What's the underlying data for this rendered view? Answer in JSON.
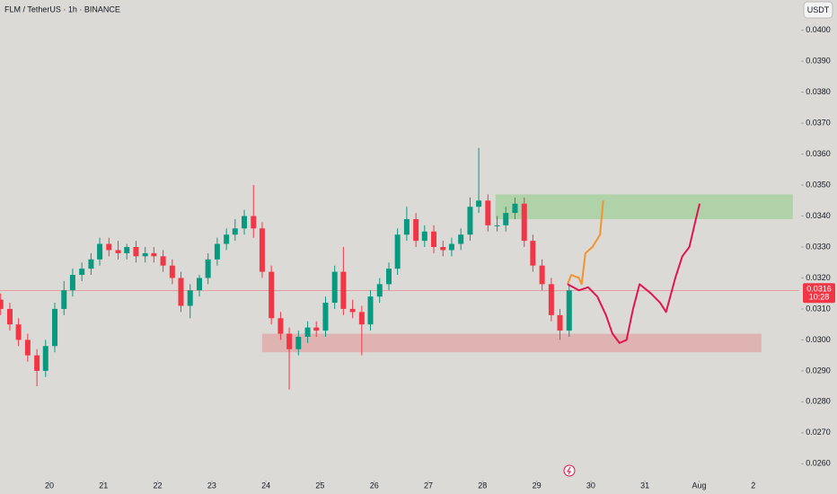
{
  "chart_data": {
    "type": "candlestick",
    "title": "FLM / TetherUS · 1h · BINANCE",
    "currency_button": "USDT",
    "up_color": "#089981",
    "down_color": "#f23645",
    "x": [
      19.1,
      19.27,
      19.43,
      19.6,
      19.77,
      19.93,
      20.1,
      20.27,
      20.43,
      20.6,
      20.77,
      20.93,
      21.1,
      21.27,
      21.43,
      21.6,
      21.77,
      21.93,
      22.1,
      22.27,
      22.43,
      22.6,
      22.77,
      22.93,
      23.1,
      23.27,
      23.43,
      23.6,
      23.77,
      23.93,
      24.1,
      24.27,
      24.43,
      24.6,
      24.77,
      24.93,
      25.1,
      25.27,
      25.43,
      25.6,
      25.77,
      25.93,
      26.1,
      26.27,
      26.43,
      26.6,
      26.77,
      26.93,
      27.1,
      27.27,
      27.43,
      27.6,
      27.77,
      27.93,
      28.1,
      28.27,
      28.43,
      28.6,
      28.77,
      28.93,
      29.1,
      29.27,
      29.43,
      29.6
    ],
    "open": [
      0.0313,
      0.031,
      0.0305,
      0.03,
      0.0295,
      0.029,
      0.0298,
      0.031,
      0.0316,
      0.0321,
      0.0323,
      0.0326,
      0.0331,
      0.0329,
      0.0328,
      0.033,
      0.0327,
      0.0328,
      0.0327,
      0.0324,
      0.032,
      0.0311,
      0.0316,
      0.032,
      0.0326,
      0.0331,
      0.0334,
      0.0336,
      0.034,
      0.0336,
      0.0322,
      0.0307,
      0.0302,
      0.0297,
      0.0301,
      0.0304,
      0.0303,
      0.0312,
      0.0322,
      0.031,
      0.0309,
      0.0305,
      0.0314,
      0.0318,
      0.0323,
      0.0334,
      0.0339,
      0.0332,
      0.0335,
      0.033,
      0.0329,
      0.0331,
      0.0334,
      0.0343,
      0.0345,
      0.0337,
      0.0337,
      0.0341,
      0.0344,
      0.0332,
      0.0324,
      0.0318,
      0.0308,
      0.0303
    ],
    "high": [
      0.0315,
      0.0312,
      0.0307,
      0.0302,
      0.0297,
      0.03,
      0.0312,
      0.0319,
      0.0323,
      0.0325,
      0.0328,
      0.0333,
      0.0333,
      0.0332,
      0.0331,
      0.0332,
      0.033,
      0.033,
      0.0329,
      0.0326,
      0.0322,
      0.0318,
      0.0321,
      0.0328,
      0.0333,
      0.0336,
      0.0339,
      0.0342,
      0.035,
      0.0338,
      0.0324,
      0.0309,
      0.0304,
      0.0303,
      0.0306,
      0.0306,
      0.0314,
      0.0324,
      0.033,
      0.0313,
      0.0311,
      0.0316,
      0.032,
      0.0325,
      0.0336,
      0.0343,
      0.0341,
      0.0337,
      0.0337,
      0.0332,
      0.0333,
      0.0336,
      0.0346,
      0.0362,
      0.0347,
      0.034,
      0.0343,
      0.0346,
      0.0346,
      0.0334,
      0.0326,
      0.032,
      0.031,
      0.0318
    ],
    "low": [
      0.0308,
      0.0303,
      0.0298,
      0.0293,
      0.0285,
      0.0288,
      0.0296,
      0.0308,
      0.0314,
      0.0319,
      0.0321,
      0.0324,
      0.0327,
      0.0326,
      0.0326,
      0.0325,
      0.0325,
      0.0325,
      0.0322,
      0.0318,
      0.0309,
      0.0307,
      0.0314,
      0.0318,
      0.0324,
      0.0329,
      0.0332,
      0.0334,
      0.0333,
      0.032,
      0.0305,
      0.03,
      0.0284,
      0.0295,
      0.0299,
      0.0301,
      0.0301,
      0.031,
      0.0308,
      0.0307,
      0.0295,
      0.0303,
      0.0312,
      0.0316,
      0.0321,
      0.0332,
      0.033,
      0.033,
      0.0328,
      0.0327,
      0.0327,
      0.0329,
      0.0332,
      0.0341,
      0.0335,
      0.0335,
      0.0335,
      0.0339,
      0.033,
      0.0322,
      0.0316,
      0.0306,
      0.03,
      0.0301
    ],
    "close": [
      0.031,
      0.0305,
      0.03,
      0.0295,
      0.029,
      0.0298,
      0.031,
      0.0316,
      0.0321,
      0.0323,
      0.0326,
      0.0331,
      0.0329,
      0.0328,
      0.033,
      0.0327,
      0.0328,
      0.0327,
      0.0324,
      0.032,
      0.0311,
      0.0316,
      0.032,
      0.0326,
      0.0331,
      0.0334,
      0.0336,
      0.034,
      0.0336,
      0.0322,
      0.0307,
      0.0302,
      0.0297,
      0.0301,
      0.0304,
      0.0303,
      0.0312,
      0.0322,
      0.031,
      0.0309,
      0.0305,
      0.0314,
      0.0318,
      0.0323,
      0.0334,
      0.0339,
      0.0332,
      0.0335,
      0.033,
      0.0329,
      0.0331,
      0.0334,
      0.0343,
      0.0345,
      0.0337,
      0.0337,
      0.0341,
      0.0344,
      0.0332,
      0.0324,
      0.0318,
      0.0308,
      0.0303,
      0.0316
    ],
    "zones": [
      {
        "x0": 28.24,
        "x1": 33.73,
        "y0": 0.0339,
        "y1": 0.0347,
        "color": "#a5cf9c"
      },
      {
        "x0": 23.93,
        "x1": 33.15,
        "y0": 0.0296,
        "y1": 0.0302,
        "color": "#e0a9a8"
      }
    ],
    "projections": [
      {
        "color": "#f2932f",
        "x": [
          29.57,
          29.64,
          29.78,
          29.83,
          29.9,
          30.03,
          30.17,
          30.23
        ],
        "y": [
          0.0318,
          0.0321,
          0.032,
          0.0318,
          0.0328,
          0.033,
          0.0334,
          0.0345
        ]
      },
      {
        "color": "#e0154f",
        "x": [
          29.57,
          29.78,
          29.95,
          30.12,
          30.28,
          30.4,
          30.53,
          30.66,
          30.78,
          30.9,
          31.11,
          31.28,
          31.39,
          31.56,
          31.69,
          31.82,
          31.94,
          32.01
        ],
        "y": [
          0.0318,
          0.0316,
          0.0317,
          0.0314,
          0.0308,
          0.0302,
          0.0299,
          0.03,
          0.031,
          0.0318,
          0.0315,
          0.0312,
          0.0309,
          0.032,
          0.0327,
          0.033,
          0.0339,
          0.0344
        ]
      }
    ],
    "last_price": {
      "value": 0.0316,
      "label": "0.0316",
      "countdown": "10:28"
    },
    "xlim": [
      19.088,
      33.85
    ],
    "ylim": [
      0.02511,
      0.04089
    ],
    "xticks": [
      20,
      21,
      22,
      23,
      24,
      25,
      26,
      27,
      28,
      29,
      30,
      31,
      {
        "value": 32,
        "label": "Aug"
      },
      {
        "value": 33,
        "label": "2"
      }
    ],
    "yticks": [
      {
        "value": 0.026,
        "label": "0.0260"
      },
      {
        "value": 0.027,
        "label": "0.0270"
      },
      {
        "value": 0.028,
        "label": "0.0280"
      },
      {
        "value": 0.029,
        "label": "0.0290"
      },
      {
        "value": 0.03,
        "label": "0.0300"
      },
      {
        "value": 0.031,
        "label": "0.0310"
      },
      {
        "value": 0.032,
        "label": "0.0320"
      },
      {
        "value": 0.033,
        "label": "0.0330"
      },
      {
        "value": 0.034,
        "label": "0.0340"
      },
      {
        "value": 0.035,
        "label": "0.0350"
      },
      {
        "value": 0.036,
        "label": "0.0360"
      },
      {
        "value": 0.037,
        "label": "0.0370"
      },
      {
        "value": 0.038,
        "label": "0.0380"
      },
      {
        "value": 0.039,
        "label": "0.0390"
      },
      {
        "value": 0.04,
        "label": "0.0400"
      }
    ]
  }
}
